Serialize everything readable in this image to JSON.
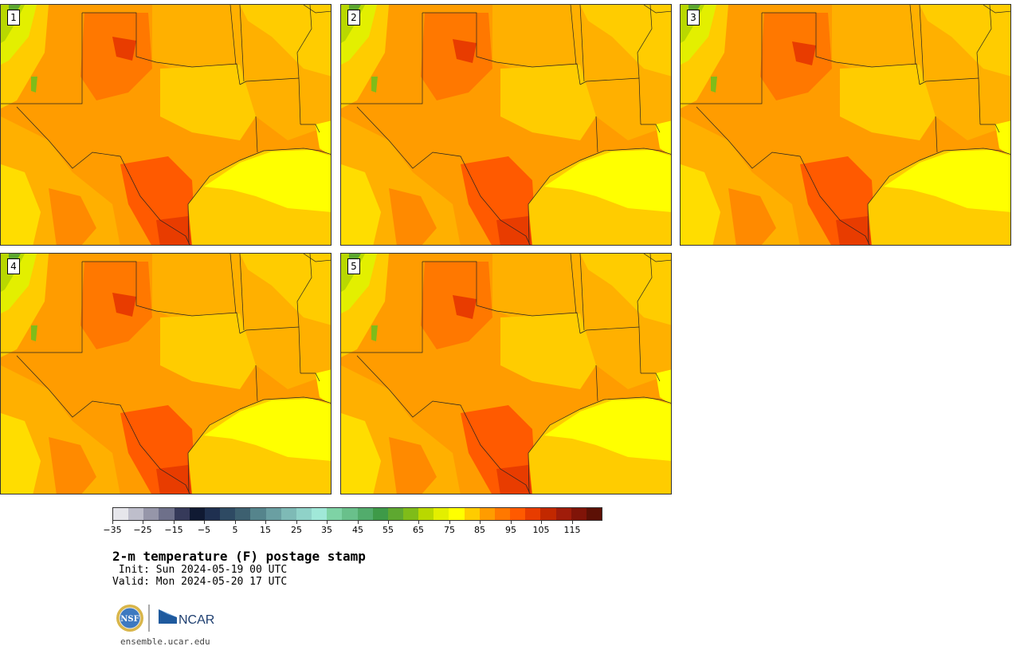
{
  "panels": [
    {
      "label": "1"
    },
    {
      "label": "2"
    },
    {
      "label": "3"
    },
    {
      "label": "4"
    },
    {
      "label": "5"
    }
  ],
  "colorbar": {
    "colors": [
      "#e6e6eb",
      "#bebecb",
      "#9696a9",
      "#6e708a",
      "#363a5a",
      "#101a33",
      "#1f3050",
      "#2e4a63",
      "#3d6070",
      "#55848c",
      "#6a9fa2",
      "#7ebab6",
      "#8fd2c8",
      "#a0e8d8",
      "#7ed3a5",
      "#69c08b",
      "#52ac6c",
      "#3e9a48",
      "#5ea830",
      "#7fbc19",
      "#b9d800",
      "#e3ef00",
      "#ffff00",
      "#ffcc00",
      "#ff9c00",
      "#ff7800",
      "#ff5a00",
      "#e83c00",
      "#c22800",
      "#a01c0a",
      "#801408",
      "#5c1005"
    ],
    "tick_labels": [
      "−35",
      "−25",
      "−15",
      "−5",
      "5",
      "15",
      "25",
      "35",
      "45",
      "55",
      "65",
      "75",
      "85",
      "95",
      "105",
      "115"
    ]
  },
  "title": "2-m temperature (F) postage stamp",
  "init": " Init: Sun 2024-05-19 00 UTC",
  "valid": "Valid: Mon 2024-05-20 17 UTC",
  "logos": {
    "nsf": "NSF",
    "ncar": "NCAR"
  },
  "site": "ensemble.ucar.edu"
}
